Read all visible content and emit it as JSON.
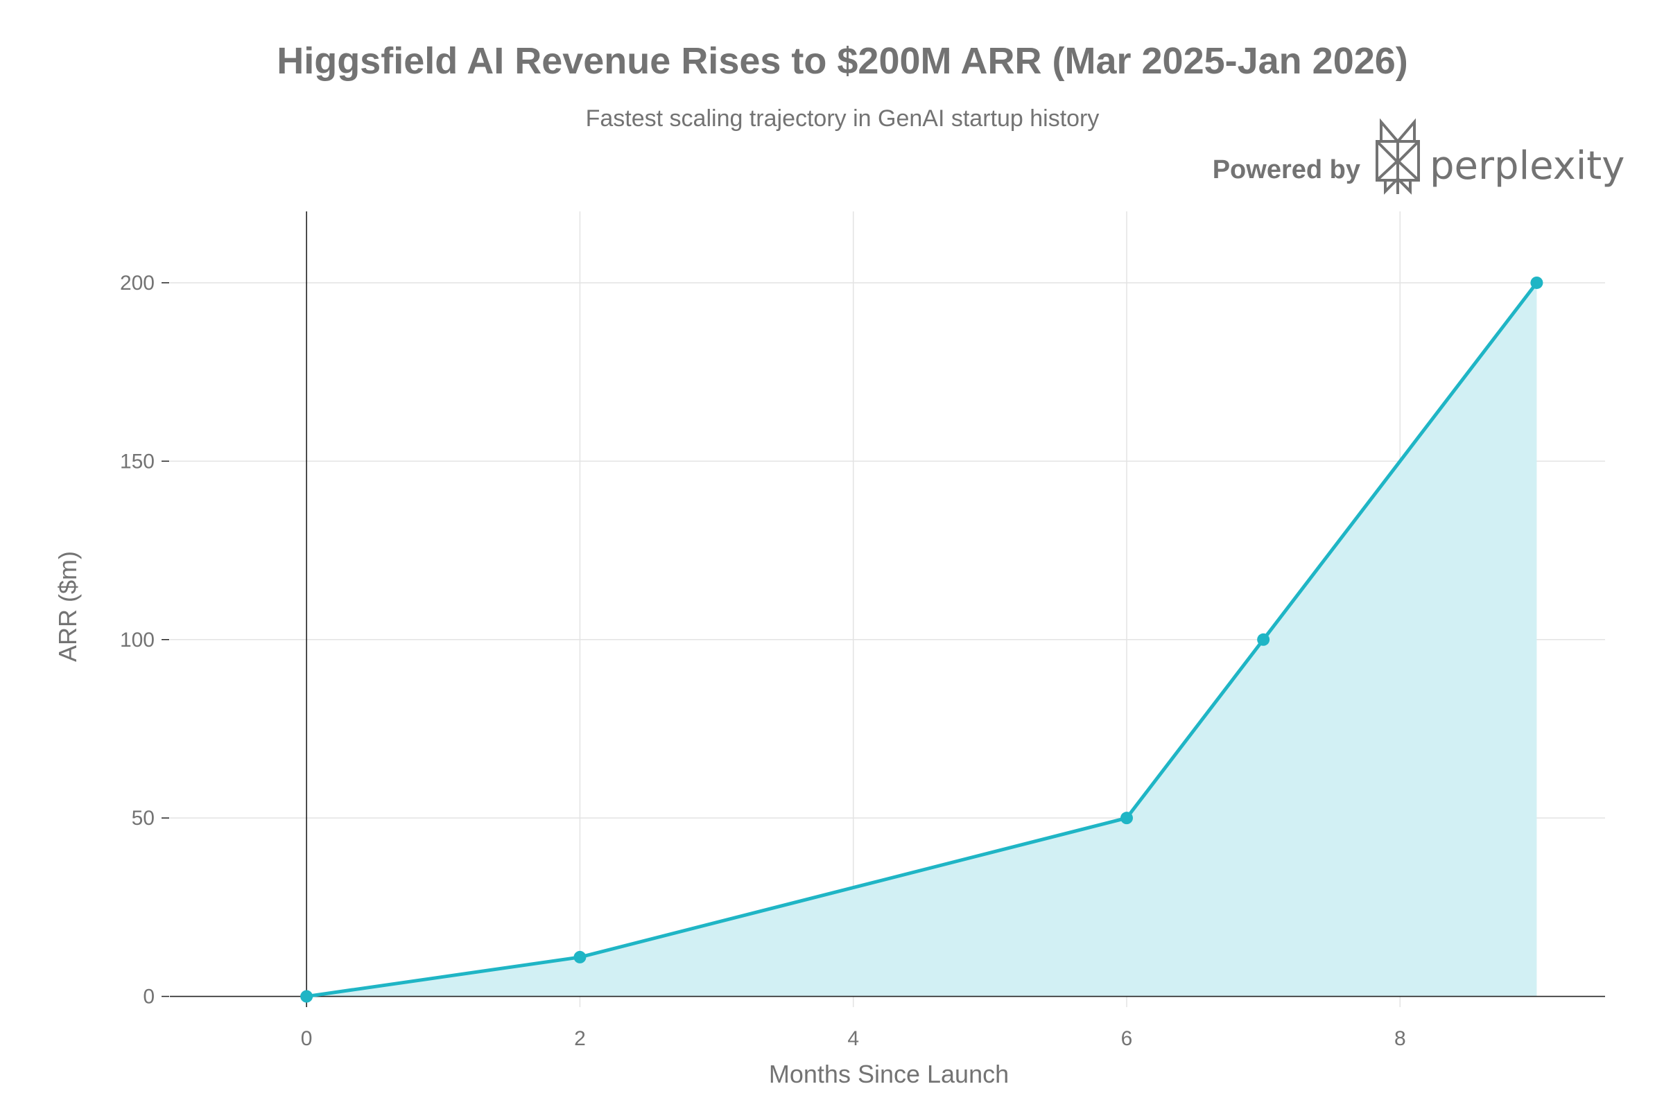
{
  "chart_data": {
    "type": "area",
    "title": "Higgsfield AI Revenue Rises to $200M ARR (Mar 2025-Jan 2026)",
    "subtitle": "Fastest scaling trajectory in GenAI startup history",
    "xlabel": "Months Since Launch",
    "ylabel": "ARR ($m)",
    "x": [
      0,
      2,
      6,
      7,
      9
    ],
    "series": [
      {
        "values": [
          0,
          11,
          50,
          100,
          200
        ]
      }
    ],
    "xlim": [
      -1,
      9.5
    ],
    "ylim": [
      -3,
      220
    ],
    "xticks": [
      0,
      2,
      4,
      6,
      8
    ],
    "yticks": [
      0,
      50,
      100,
      150,
      200
    ],
    "grid": true,
    "legend": "none",
    "colors": {
      "line": "#1fb5c5",
      "fill": "#d2f0f4",
      "text": "#737373"
    }
  },
  "branding": {
    "powered_by": "Powered by",
    "brand_name": "perplexity",
    "logo_icon": "perplexity-logo-icon"
  }
}
